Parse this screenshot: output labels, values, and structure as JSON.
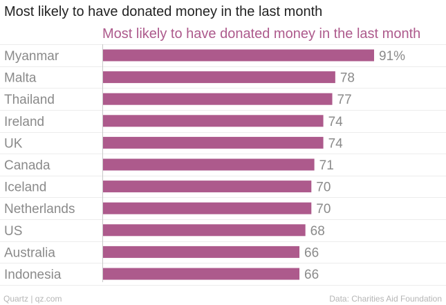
{
  "header": {
    "title": "Most likely to have donated money in the last month",
    "subtitle": "Most likely to have donated money in the last month"
  },
  "chart_data": {
    "type": "bar",
    "orientation": "horizontal",
    "title": "Most likely to have donated money in the last month",
    "categories": [
      "Myanmar",
      "Malta",
      "Thailand",
      "Ireland",
      "UK",
      "Canada",
      "Iceland",
      "Netherlands",
      "US",
      "Australia",
      "Indonesia"
    ],
    "values": [
      91,
      78,
      77,
      74,
      74,
      71,
      70,
      70,
      68,
      66,
      66
    ],
    "value_labels": [
      "91%",
      "78",
      "77",
      "74",
      "74",
      "71",
      "70",
      "70",
      "68",
      "66",
      "66"
    ],
    "xlim": [
      0,
      100
    ],
    "grid": true,
    "bar_color": "#ad5a8c"
  },
  "footer": {
    "left": "Quartz | qz.com",
    "right": "Data: Charities Aid Foundation"
  }
}
